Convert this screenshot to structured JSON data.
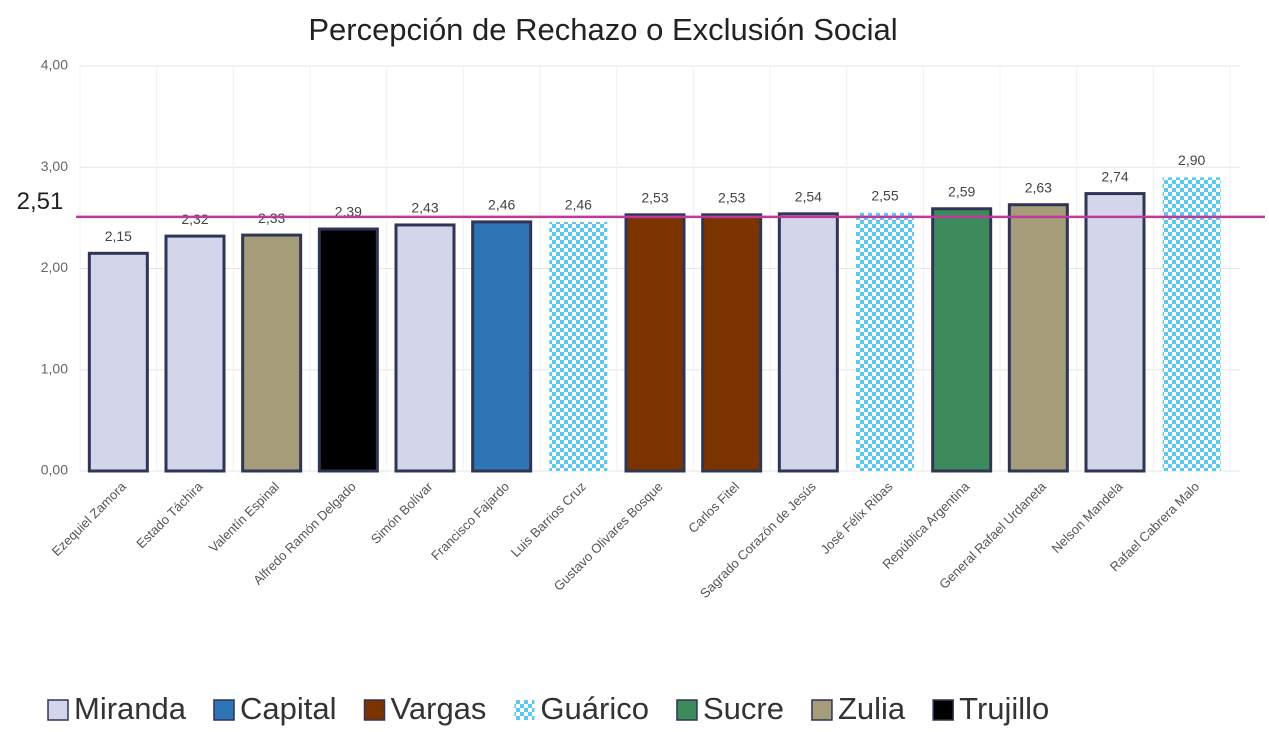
{
  "chart_data": {
    "type": "bar",
    "title": "Percepción de Rechazo o Exclusión Social",
    "categories": [
      "Ezequiel Zamora",
      "Estado Táchira",
      "Valentín Espinal",
      "Alfredo Ramón Delgado",
      "Simón Bolívar",
      "Francisco Fajardo",
      "Luis Barrios Cruz",
      "Gustavo Olivares Bosque",
      "Carlos Fitel",
      "Sagrado Corazón de Jesús",
      "José Félix Ribas",
      "República Argentina",
      "General Rafael Urdaneta",
      "Nelson Mandela",
      "Rafael Cabrera Malo"
    ],
    "series": [
      {
        "name": "Miranda",
        "color": "#d3d6ea",
        "values": [
          2.15,
          2.32,
          null,
          null,
          2.43,
          null,
          null,
          null,
          null,
          2.54,
          null,
          null,
          null,
          2.74,
          null
        ],
        "value_labels": [
          "2,15",
          "2,32",
          null,
          null,
          "2,43",
          null,
          null,
          null,
          null,
          "2,54",
          null,
          null,
          null,
          "2,74",
          null
        ]
      },
      {
        "name": "Capital",
        "color": "#2e75b6",
        "values": [
          null,
          null,
          null,
          null,
          null,
          2.46,
          null,
          null,
          null,
          null,
          null,
          null,
          null,
          null,
          null
        ],
        "value_labels": [
          null,
          null,
          null,
          null,
          null,
          "2,46",
          null,
          null,
          null,
          null,
          null,
          null,
          null,
          null,
          null
        ]
      },
      {
        "name": "Vargas",
        "color": "#7b3300",
        "values": [
          null,
          null,
          null,
          null,
          null,
          null,
          null,
          2.53,
          2.53,
          null,
          null,
          null,
          null,
          null,
          null
        ],
        "value_labels": [
          null,
          null,
          null,
          null,
          null,
          null,
          null,
          "2,53",
          "2,53",
          null,
          null,
          null,
          null,
          null,
          null
        ]
      },
      {
        "name": "Guárico",
        "color": "#5bc8ef",
        "pattern": "checker",
        "values": [
          null,
          null,
          null,
          null,
          null,
          null,
          2.46,
          null,
          null,
          null,
          2.55,
          null,
          null,
          null,
          2.9
        ],
        "value_labels": [
          null,
          null,
          null,
          null,
          null,
          null,
          "2,46",
          null,
          null,
          null,
          "2,55",
          null,
          null,
          null,
          "2,90"
        ]
      },
      {
        "name": "Sucre",
        "color": "#3d8b5c",
        "values": [
          null,
          null,
          null,
          null,
          null,
          null,
          null,
          null,
          null,
          null,
          null,
          2.59,
          null,
          null,
          null
        ],
        "value_labels": [
          null,
          null,
          null,
          null,
          null,
          null,
          null,
          null,
          null,
          null,
          null,
          "2,59",
          null,
          null,
          null
        ]
      },
      {
        "name": "Zulia",
        "color": "#a59c7a",
        "values": [
          null,
          null,
          2.33,
          null,
          null,
          null,
          null,
          null,
          null,
          null,
          null,
          null,
          2.63,
          null,
          null
        ],
        "value_labels": [
          null,
          null,
          "2,33",
          null,
          null,
          null,
          null,
          null,
          null,
          null,
          null,
          null,
          "2,63",
          null,
          null
        ]
      },
      {
        "name": "Trujillo",
        "color": "#000000",
        "values": [
          null,
          null,
          null,
          2.39,
          null,
          null,
          null,
          null,
          null,
          null,
          null,
          null,
          null,
          null,
          null
        ],
        "value_labels": [
          null,
          null,
          null,
          "2,39",
          null,
          null,
          null,
          null,
          null,
          null,
          null,
          null,
          null,
          null,
          null
        ]
      }
    ],
    "ylim": [
      0,
      4
    ],
    "yticks": [
      {
        "value": 0,
        "label": "0,00"
      },
      {
        "value": 1,
        "label": "1,00"
      },
      {
        "value": 2,
        "label": "2,00"
      },
      {
        "value": 3,
        "label": "3,00"
      },
      {
        "value": 4,
        "label": "4,00"
      }
    ],
    "grid": true,
    "reference_line": {
      "value": 2.51,
      "label": "2,51",
      "color": "#c0399a"
    },
    "legend": "bottom"
  }
}
